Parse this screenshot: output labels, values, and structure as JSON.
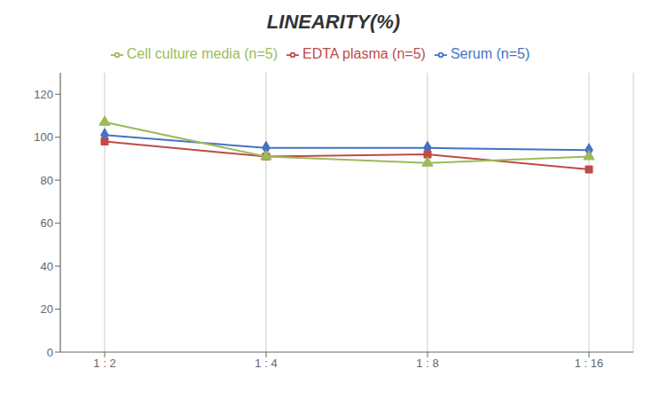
{
  "chart_data": {
    "type": "line",
    "title": "LINEARITY(%)",
    "categories": [
      "1 : 2",
      "1 : 4",
      "1 : 8",
      "1 : 16"
    ],
    "series": [
      {
        "name": "Serum (n=5)",
        "color": "#4472C4",
        "marker": "diamond",
        "values": [
          101,
          95,
          95,
          94
        ]
      },
      {
        "name": "EDTA plasma (n=5)",
        "color": "#BE4B48",
        "marker": "square",
        "values": [
          98,
          91,
          92,
          85
        ]
      },
      {
        "name": "Cell culture media (n=5)",
        "color": "#9BBB59",
        "marker": "triangle",
        "values": [
          107,
          91,
          88,
          91
        ]
      }
    ],
    "ylim": [
      0,
      130
    ],
    "yticks": [
      0,
      20,
      40,
      60,
      80,
      100,
      120
    ],
    "grid": "x",
    "legend": "top"
  }
}
